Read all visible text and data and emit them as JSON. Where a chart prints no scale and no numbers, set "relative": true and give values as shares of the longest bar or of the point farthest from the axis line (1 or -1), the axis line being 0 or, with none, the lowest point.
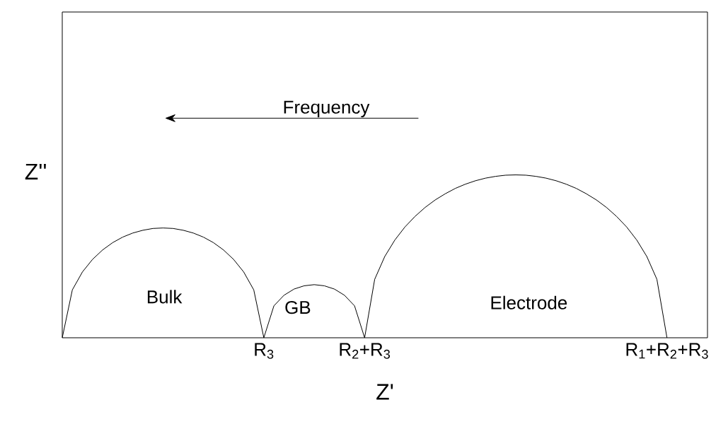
{
  "chart_data": {
    "type": "line",
    "relative": true,
    "xlabel": "Z'",
    "ylabel": "Z''",
    "categories": [
      null,
      null,
      null,
      null,
      null,
      null,
      null,
      null,
      null,
      null,
      null,
      null,
      null,
      null,
      null,
      null,
      null,
      null,
      null,
      null,
      "R$_{3}$",
      null,
      null,
      null,
      null,
      null,
      null,
      null,
      null,
      null,
      "R$_{2}$+R$_{3}$",
      null,
      null,
      null,
      null,
      null,
      null,
      null,
      null,
      null,
      null,
      null,
      null,
      null,
      null,
      null,
      null,
      null,
      null,
      null,
      null,
      null,
      null,
      null,
      null,
      null,
      null,
      null,
      null,
      null,
      "R$_{1}$+R$_{2}$+R$_{3}$"
    ],
    "series": [
      {
        "color": "#000000",
        "values": [
          0,
          0.294,
          0.404,
          0.481,
          0.539,
          0.584,
          0.618,
          0.643,
          0.66,
          0.671,
          0.674,
          0.671,
          0.66,
          0.643,
          0.618,
          0.584,
          0.539,
          0.481,
          0.404,
          0.294,
          0,
          0.196,
          0.261,
          0.299,
          0.319,
          0.326,
          0.319,
          0.299,
          0.261,
          0.196,
          0,
          0.359,
          0.499,
          0.6,
          0.68,
          0.745,
          0.8,
          0.846,
          0.884,
          0.917,
          0.943,
          0.964,
          0.98,
          0.991,
          0.998,
          1,
          0.998,
          0.991,
          0.98,
          0.964,
          0.943,
          0.917,
          0.884,
          0.846,
          0.8,
          0.745,
          0.68,
          0.6,
          0.499,
          0.359,
          0
        ]
      }
    ],
    "annotations": [
      "Frequency",
      "Bulk",
      "GB",
      "Electrode"
    ]
  }
}
